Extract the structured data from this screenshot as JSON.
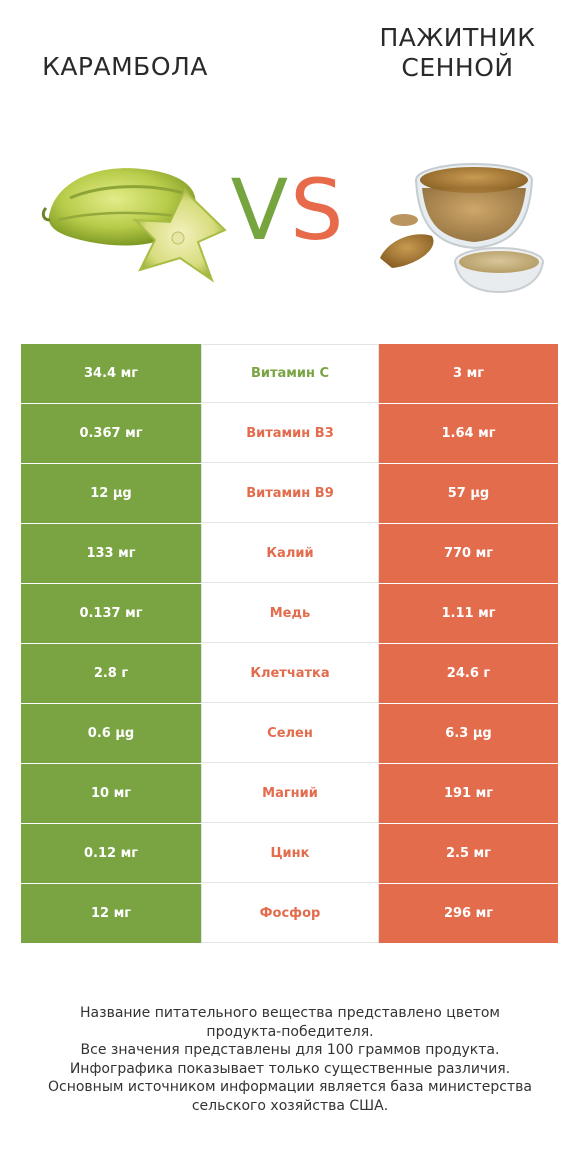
{
  "header": {
    "left_product": "КАРАМБОЛА",
    "right_product_line1": "ПАЖИТНИК",
    "right_product_line2": "СЕННОЙ",
    "vs_v": "V",
    "vs_s": "S"
  },
  "colors": {
    "left_winner": "#7aa442",
    "right_winner": "#e36c4d",
    "vs_v": "#76a540",
    "vs_s": "#e76b4a"
  },
  "chart_data": {
    "type": "table",
    "columns": [
      "КАРАМБОЛА",
      "",
      "ПАЖИТНИК СЕННОЙ"
    ],
    "rows": [
      {
        "nutrient": "Витамин C",
        "left": "34.4 мг",
        "right": "3 мг",
        "winner": "left"
      },
      {
        "nutrient": "Витамин B3",
        "left": "0.367 мг",
        "right": "1.64 мг",
        "winner": "right"
      },
      {
        "nutrient": "Витамин B9",
        "left": "12 µg",
        "right": "57 µg",
        "winner": "right"
      },
      {
        "nutrient": "Калий",
        "left": "133 мг",
        "right": "770 мг",
        "winner": "right"
      },
      {
        "nutrient": "Медь",
        "left": "0.137 мг",
        "right": "1.11 мг",
        "winner": "right"
      },
      {
        "nutrient": "Клетчатка",
        "left": "2.8 г",
        "right": "24.6 г",
        "winner": "right"
      },
      {
        "nutrient": "Селен",
        "left": "0.6 µg",
        "right": "6.3 µg",
        "winner": "right"
      },
      {
        "nutrient": "Магний",
        "left": "10 мг",
        "right": "191 мг",
        "winner": "right"
      },
      {
        "nutrient": "Цинк",
        "left": "0.12 мг",
        "right": "2.5 мг",
        "winner": "right"
      },
      {
        "nutrient": "Фосфор",
        "left": "12 мг",
        "right": "296 мг",
        "winner": "right"
      }
    ]
  },
  "footer": {
    "lines": [
      "Название питательного вещества представлено цветом",
      "продукта-победителя.",
      "Все значения представлены для 100 граммов продукта.",
      "Инфографика показывает только существенные различия.",
      "Основным источником информации является база министерства",
      "сельского хозяйства США."
    ]
  }
}
